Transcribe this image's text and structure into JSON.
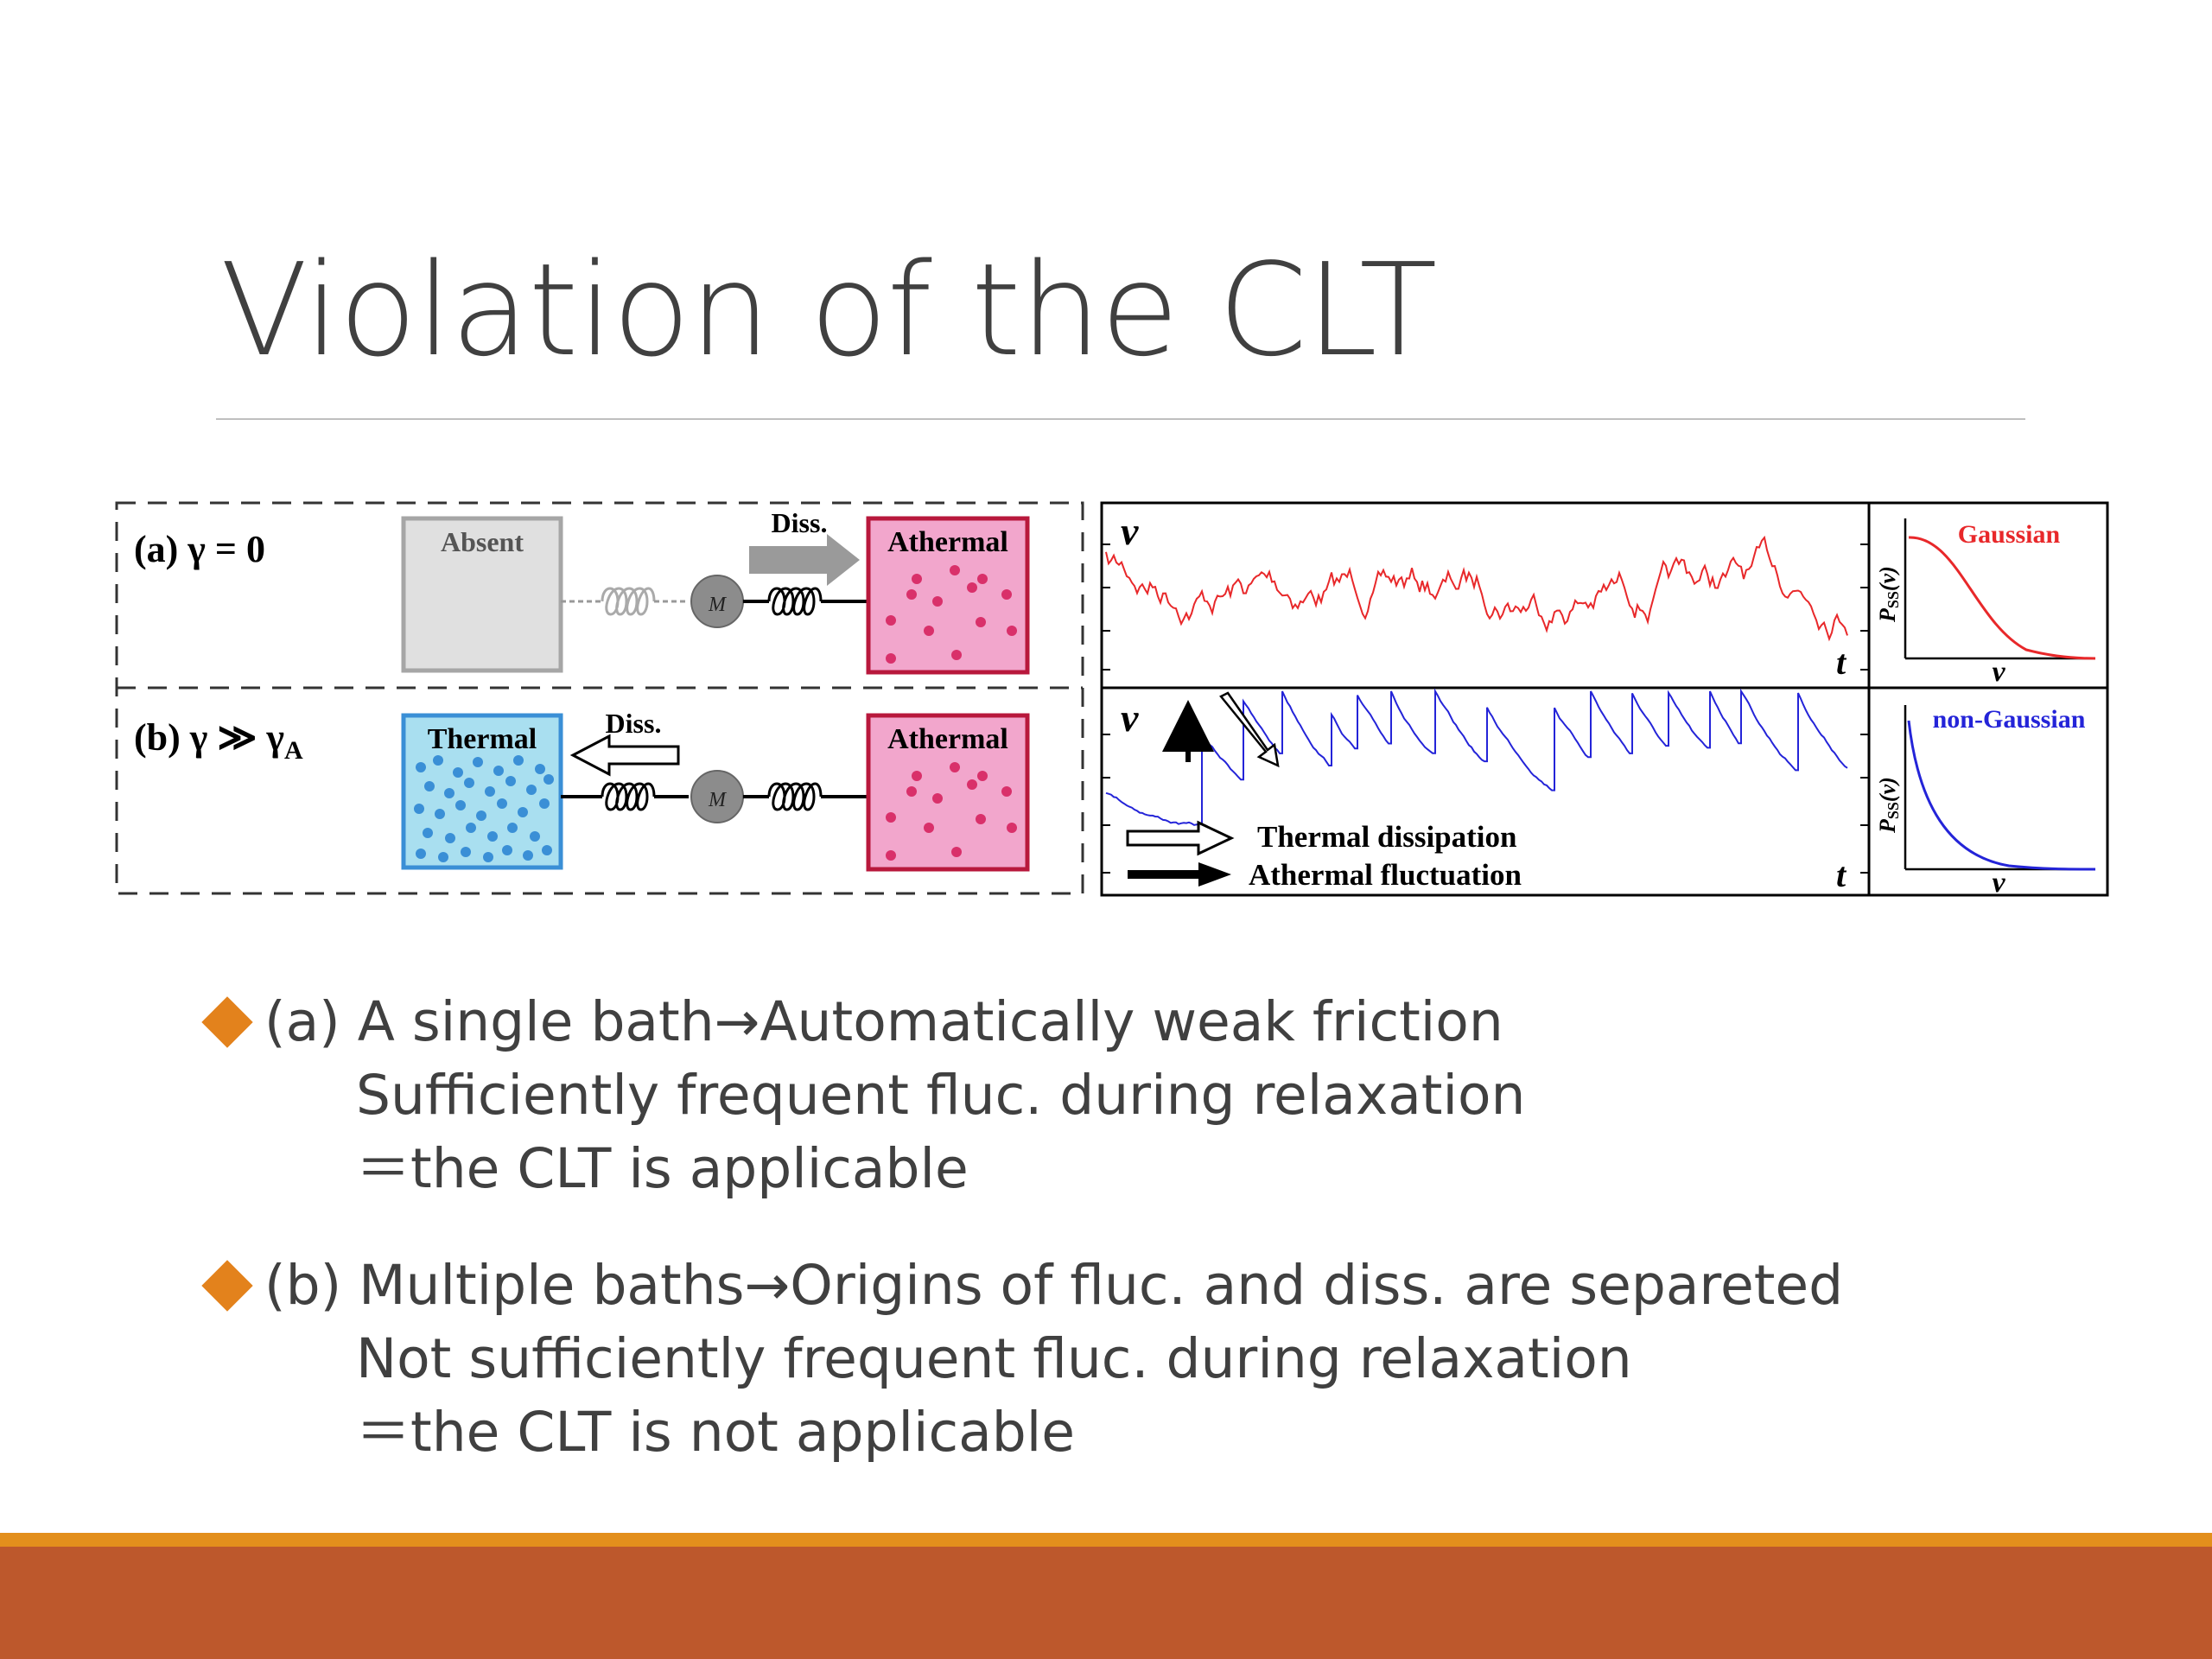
{
  "slide": {
    "title": "Violation of the CLT"
  },
  "figure": {
    "panel_a": {
      "label": "(a) γ = 0",
      "left_bath": "Absent",
      "mass": "M",
      "arrow": "Diss.",
      "right_bath": "Athermal"
    },
    "panel_b": {
      "label": "(b) γ ≫ γ",
      "label_sub": "A",
      "left_bath": "Thermal",
      "mass": "M",
      "arrow": "Diss.",
      "right_bath": "Athermal"
    },
    "trace_a": {
      "y_label": "v",
      "x_label": "t"
    },
    "trace_b": {
      "y_label": "v",
      "x_label": "t",
      "legend": [
        "Thermal dissipation",
        "Athermal fluctuation"
      ]
    },
    "dist_a": {
      "y_label": "P",
      "y_label_sub": "SS",
      "y_label_arg": "(v)",
      "x_label": "v",
      "curve_label": "Gaussian",
      "color": "#e8282a"
    },
    "dist_b": {
      "y_label": "P",
      "y_label_sub": "SS",
      "y_label_arg": "(v)",
      "x_label": "v",
      "curve_label": "non-Gaussian",
      "color": "#2424d8"
    },
    "colors": {
      "thermal_fill": "#a9dff0",
      "thermal_dot": "#3a8fd6",
      "athermal_fill": "#f2a6cc",
      "athermal_dot": "#d9306a"
    }
  },
  "bullets": [
    {
      "lines": [
        "(a) A single bath→Automatically weak friction",
        "Sufficiently frequent fluc. during relaxation",
        "＝the CLT is applicable"
      ]
    },
    {
      "lines": [
        "(b) Multiple baths→Origins of fluc. and diss. are separeted",
        "Not sufficiently frequent fluc. during relaxation",
        "＝the CLT is not applicable"
      ]
    }
  ],
  "theme": {
    "bullet_color": "#e3821c",
    "footer_color": "#bd582c",
    "footer_stripe": "#e38f1c",
    "text_color": "#404040"
  }
}
